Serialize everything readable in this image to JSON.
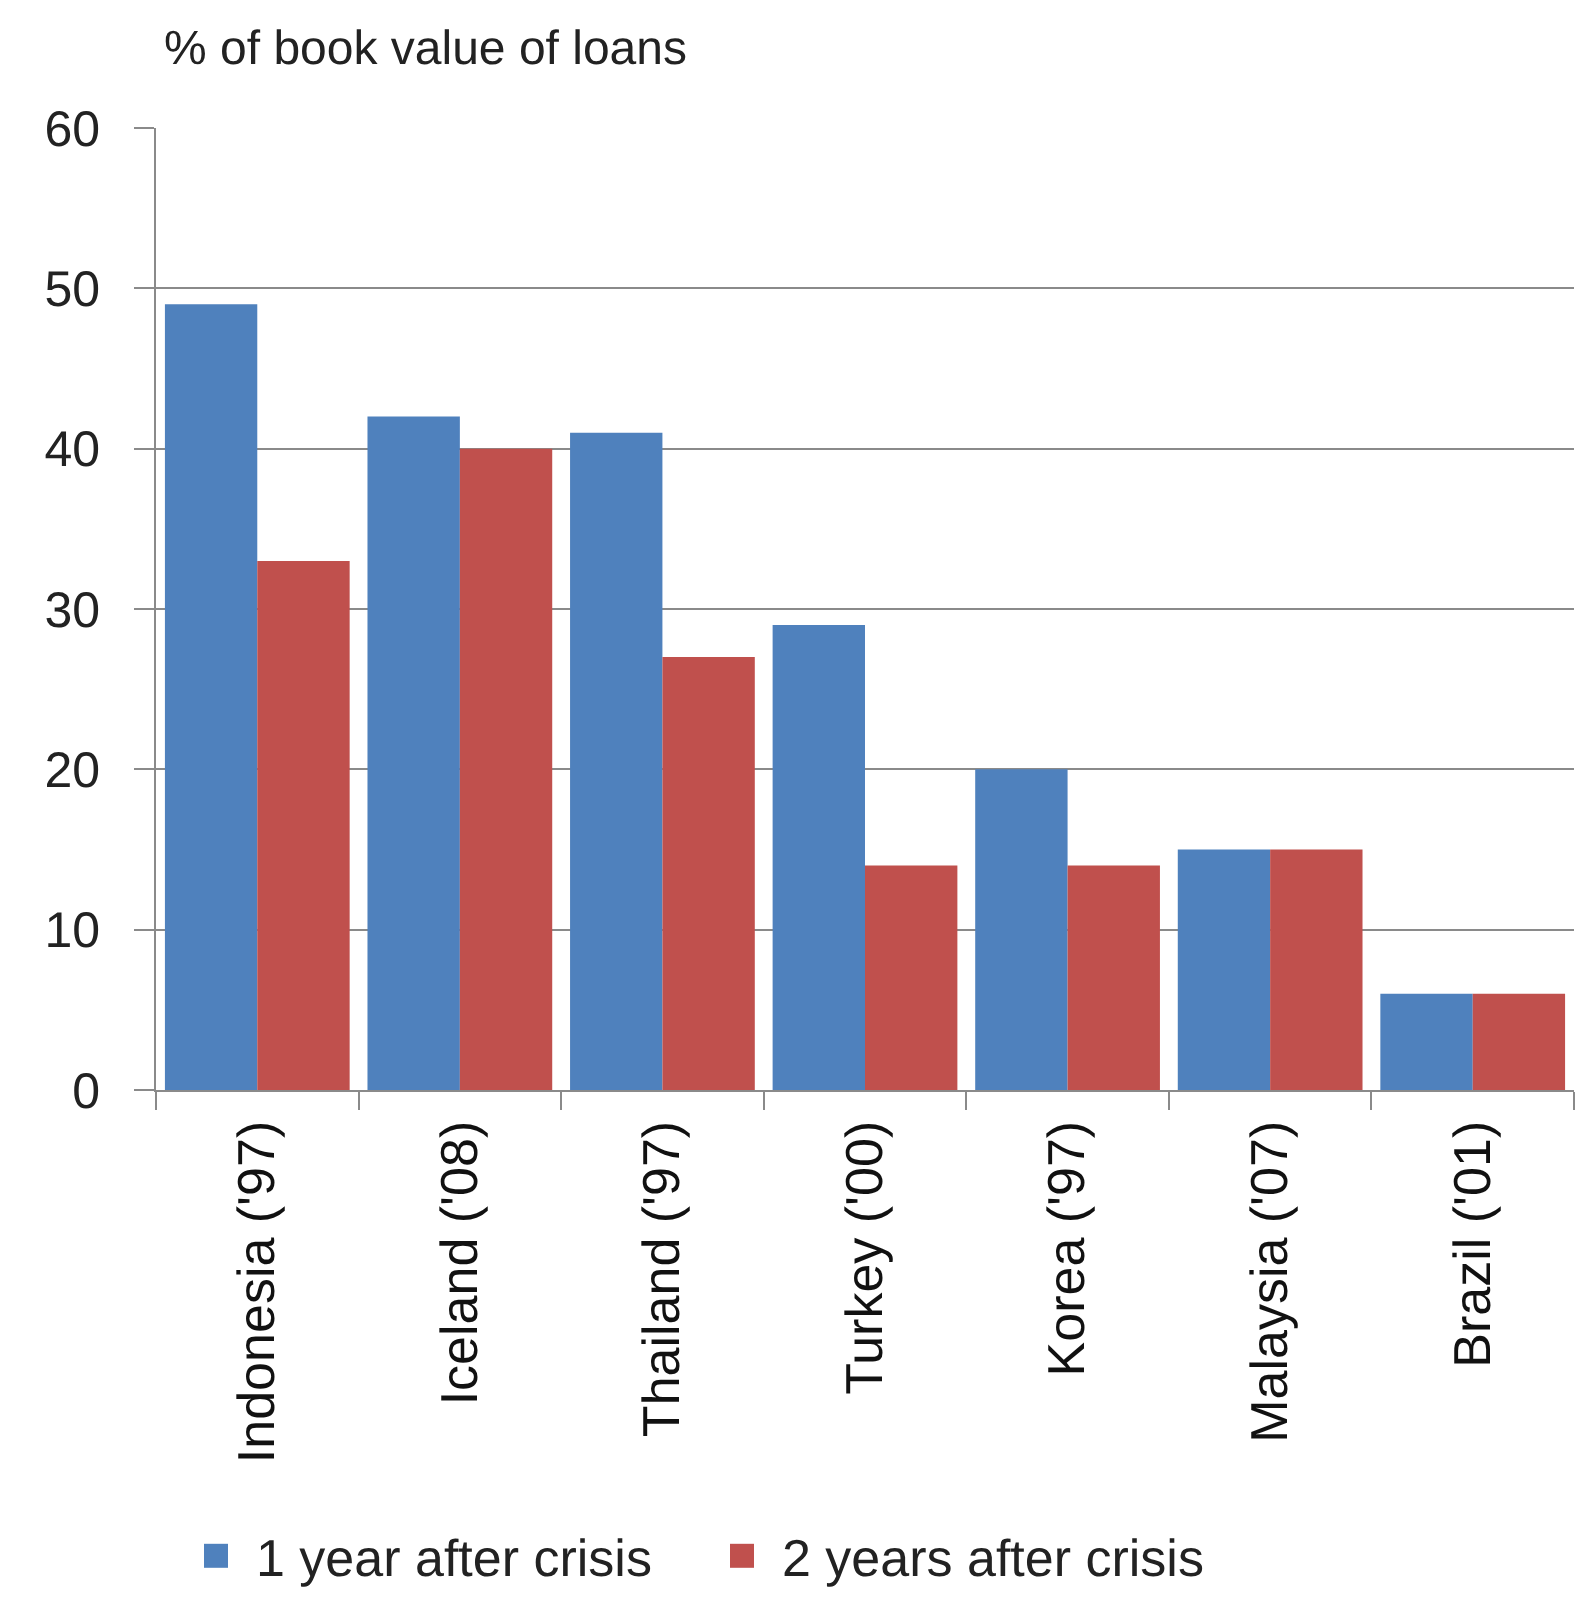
{
  "chart_data": {
    "type": "bar",
    "ylabel": "% of book value of loans",
    "categories": [
      "Indonesia ('97)",
      "Iceland ('08)",
      "Thailand ('97)",
      "Turkey ('00)",
      "Korea ('97)",
      "Malaysia ('07)",
      "Brazil ('01)"
    ],
    "series": [
      {
        "name": "1 year after crisis",
        "color": "#4f81bd",
        "values": [
          49,
          42,
          41,
          29,
          20,
          15,
          6
        ]
      },
      {
        "name": "2 years after crisis",
        "color": "#c0504d",
        "values": [
          33,
          40,
          27,
          14,
          14,
          15,
          6
        ]
      }
    ],
    "ylim": [
      0,
      60
    ],
    "yticks": [
      0,
      10,
      20,
      30,
      40,
      50,
      60
    ],
    "grid": "y",
    "legend": "bottom"
  }
}
